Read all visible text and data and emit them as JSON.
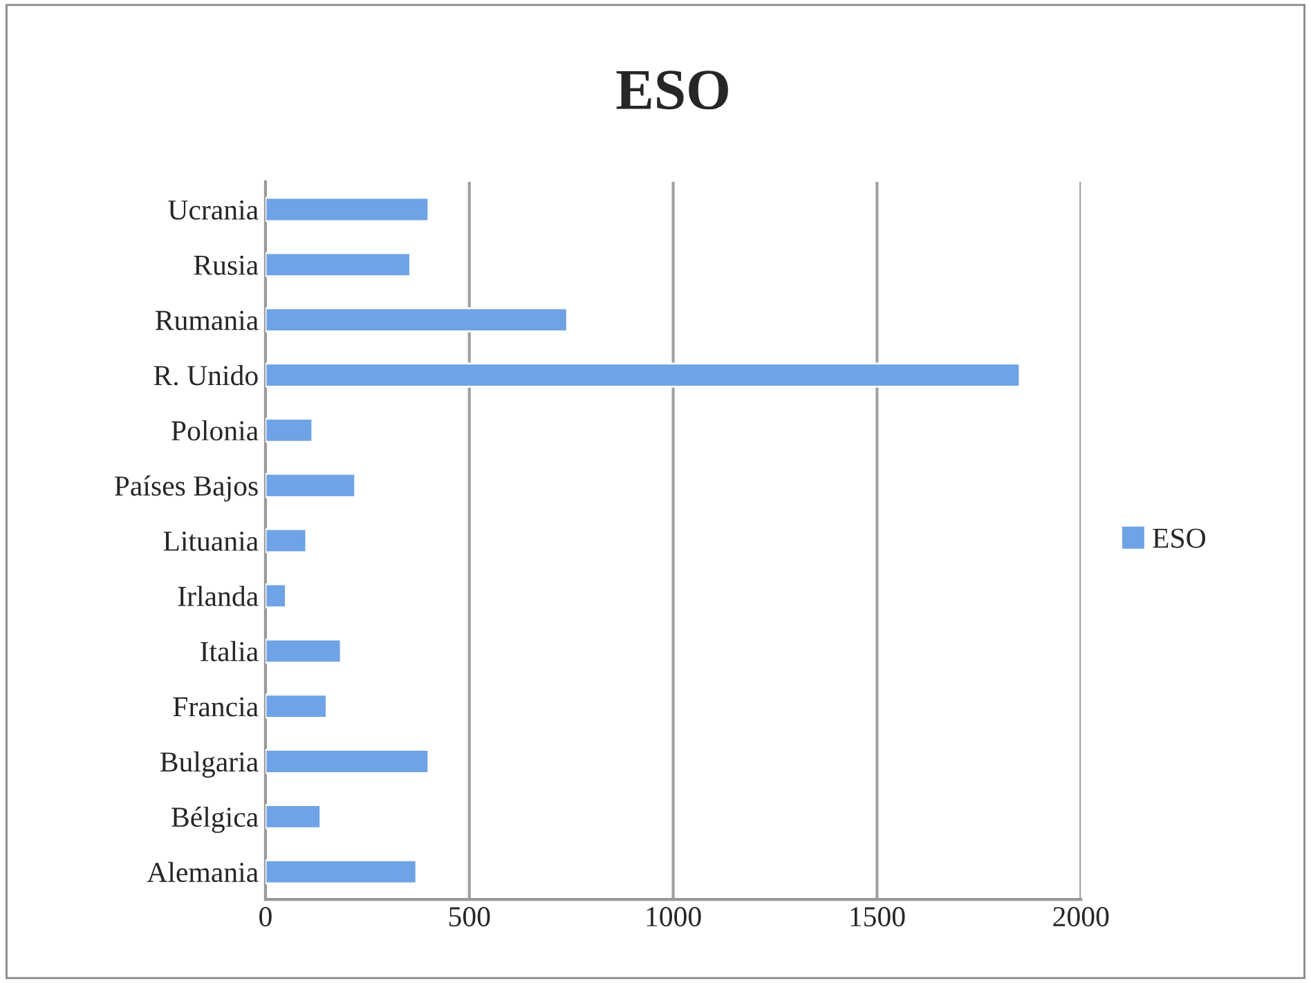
{
  "chart_data": {
    "type": "bar",
    "orientation": "horizontal",
    "title": "ESO",
    "categories": [
      "Ucrania",
      "Rusia",
      "Rumania",
      "R. Unido",
      "Polonia",
      "Países Bajos",
      "Lituania",
      "Irlanda",
      "Italia",
      "Francia",
      "Bulgaria",
      "Bélgica",
      "Alemania"
    ],
    "series": [
      {
        "name": "ESO",
        "color": "#6fa3e6",
        "values": [
          400,
          355,
          740,
          1850,
          115,
          220,
          100,
          50,
          185,
          150,
          400,
          135,
          370
        ]
      }
    ],
    "xlim": [
      0,
      2000
    ],
    "xticks": [
      0,
      500,
      1000,
      1500,
      2000
    ],
    "grid": "x",
    "legend": "right"
  }
}
